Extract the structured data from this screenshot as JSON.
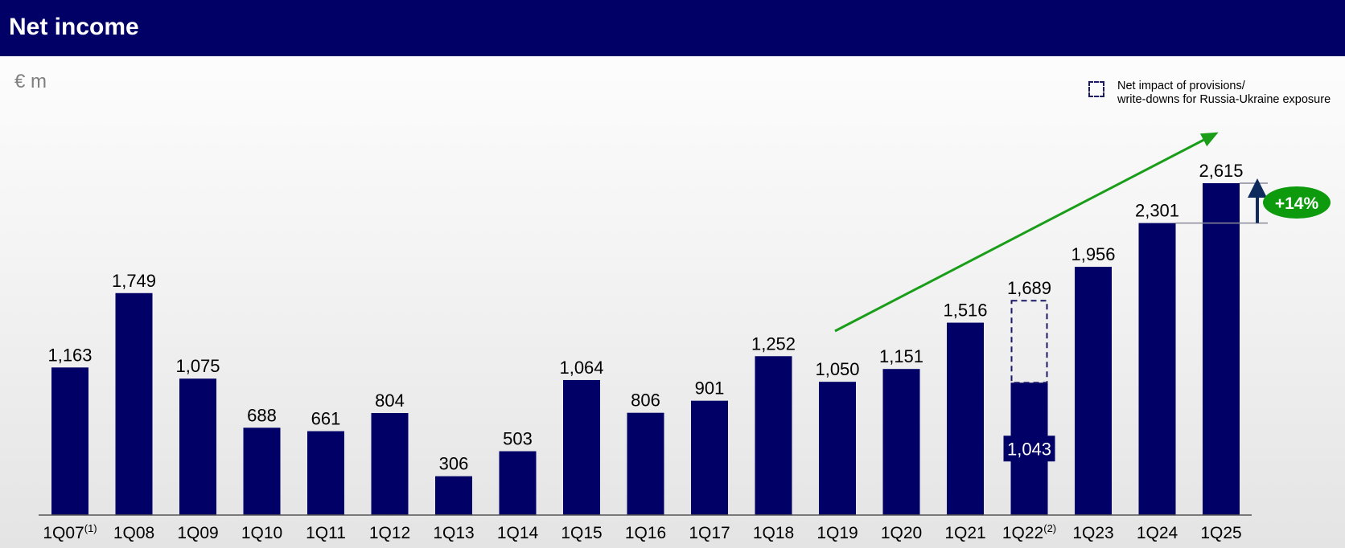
{
  "header": {
    "title": "Net income"
  },
  "unit_label": "€ m",
  "legend": {
    "line1": "Net impact of provisions/",
    "line2": "write-downs for Russia-Ukraine exposure"
  },
  "colors": {
    "bar": "#000066",
    "dashed_outline": "#1a1a66",
    "trend_arrow": "#1a9e1a",
    "growth_badge": "#0d9b0d",
    "up_arrow": "#0f2a5c"
  },
  "chart_data": {
    "type": "bar",
    "title": "",
    "xlabel": "",
    "ylabel": "",
    "categories": [
      "1Q07",
      "1Q08",
      "1Q09",
      "1Q10",
      "1Q11",
      "1Q12",
      "1Q13",
      "1Q14",
      "1Q15",
      "1Q16",
      "1Q17",
      "1Q18",
      "1Q19",
      "1Q20",
      "1Q21",
      "1Q22",
      "1Q23",
      "1Q24",
      "1Q25"
    ],
    "category_footnotes": [
      "(1)",
      "",
      "",
      "",
      "",
      "",
      "",
      "",
      "",
      "",
      "",
      "",
      "",
      "",
      "",
      "(2)",
      "",
      "",
      ""
    ],
    "values": [
      1163,
      1749,
      1075,
      688,
      661,
      804,
      306,
      503,
      1064,
      806,
      901,
      1252,
      1050,
      1151,
      1516,
      1043,
      1956,
      2301,
      2615
    ],
    "value_labels": [
      "1,163",
      "1,749",
      "1,075",
      "688",
      "661",
      "804",
      "306",
      "503",
      "1,064",
      "806",
      "901",
      "1,252",
      "1,050",
      "1,151",
      "1,516",
      "1,043",
      "1,956",
      "2,301",
      "2,615"
    ],
    "adjusted": {
      "category": "1Q22",
      "value": 1689,
      "label": "1,689",
      "style": "dashed"
    },
    "growth": {
      "label": "+14%",
      "from": "1Q24",
      "to": "1Q25"
    },
    "ylim": [
      0,
      2615
    ],
    "grid": false,
    "legend_position": "top-right"
  }
}
